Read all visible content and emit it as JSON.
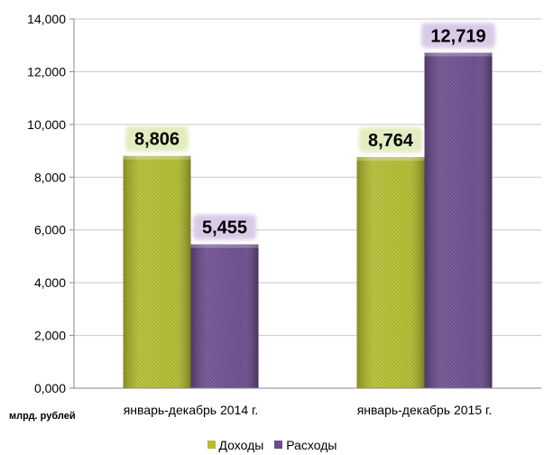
{
  "chart_data": {
    "type": "bar",
    "categories": [
      "январь-декабрь 2014 г.",
      "январь-декабрь 2015 г."
    ],
    "series": [
      {
        "name": "Доходы",
        "values": [
          8806,
          8764
        ],
        "labels": [
          "8,806",
          "8,764"
        ],
        "color": "#b5bd2c"
      },
      {
        "name": "Расходы",
        "values": [
          5455,
          12719
        ],
        "labels": [
          "5,455",
          "12,719"
        ],
        "color": "#6a4c8e"
      }
    ],
    "ylim": [
      0,
      14000
    ],
    "yticks": [
      0,
      2000,
      4000,
      6000,
      8000,
      10000,
      12000,
      14000
    ],
    "ytick_labels": [
      "0,000",
      "2,000",
      "4,000",
      "6,000",
      "8,000",
      "10,000",
      "12,000",
      "14,000"
    ],
    "unit_label": "млрд. рублей",
    "grid": true,
    "legend_position": "bottom"
  }
}
